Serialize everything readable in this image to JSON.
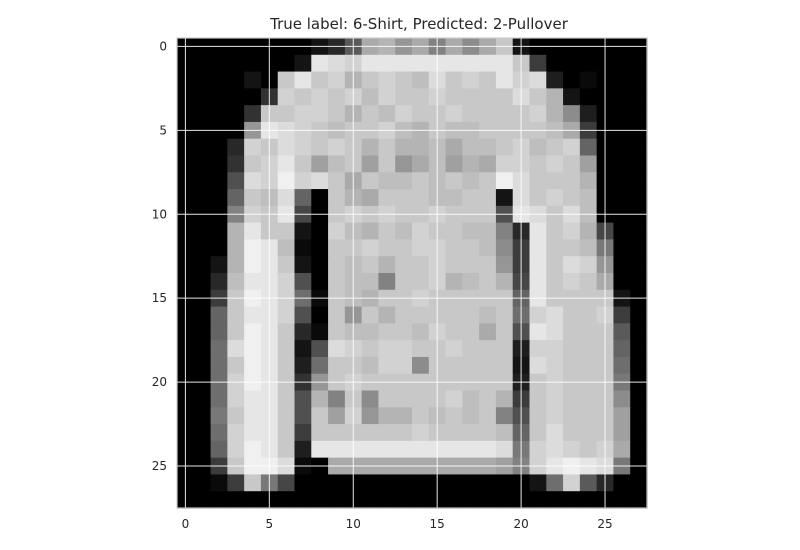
{
  "chart_data": {
    "type": "heatmap",
    "title": "True label: 6-Shirt, Predicted: 2-Pullover",
    "xlabel": "",
    "ylabel": "",
    "x_ticks": [
      "0",
      "5",
      "10",
      "15",
      "20",
      "25"
    ],
    "y_ticks": [
      "0",
      "5",
      "10",
      "15",
      "20",
      "25"
    ],
    "xlim": [
      -0.5,
      27.5
    ],
    "ylim": [
      27.5,
      -0.5
    ],
    "grid": true,
    "colormap": "gray",
    "rows": 28,
    "cols": 28,
    "values": [
      [
        0,
        0,
        0,
        0,
        0,
        0,
        0,
        0,
        20,
        40,
        90,
        170,
        180,
        150,
        170,
        130,
        170,
        140,
        170,
        200,
        20,
        0,
        0,
        0,
        0,
        0,
        0,
        0
      ],
      [
        0,
        0,
        0,
        0,
        0,
        0,
        0,
        20,
        230,
        220,
        210,
        230,
        230,
        230,
        230,
        230,
        230,
        230,
        230,
        230,
        200,
        60,
        0,
        0,
        0,
        0,
        0,
        0
      ],
      [
        0,
        0,
        0,
        0,
        20,
        0,
        200,
        230,
        200,
        210,
        180,
        200,
        210,
        200,
        190,
        220,
        200,
        210,
        200,
        230,
        210,
        220,
        30,
        0,
        10,
        0,
        0,
        0
      ],
      [
        0,
        0,
        0,
        0,
        0,
        50,
        210,
        200,
        210,
        200,
        210,
        190,
        210,
        200,
        200,
        210,
        200,
        200,
        200,
        200,
        220,
        200,
        180,
        20,
        0,
        0,
        0,
        0
      ],
      [
        0,
        0,
        0,
        0,
        50,
        200,
        200,
        210,
        210,
        200,
        180,
        200,
        190,
        210,
        200,
        200,
        210,
        200,
        200,
        200,
        200,
        210,
        180,
        140,
        30,
        0,
        0,
        0
      ],
      [
        0,
        0,
        0,
        0,
        150,
        230,
        220,
        210,
        200,
        190,
        200,
        200,
        210,
        190,
        180,
        200,
        190,
        190,
        200,
        200,
        200,
        200,
        190,
        170,
        60,
        0,
        0,
        0
      ],
      [
        0,
        0,
        0,
        40,
        210,
        200,
        220,
        210,
        200,
        210,
        200,
        180,
        200,
        180,
        180,
        190,
        170,
        190,
        190,
        200,
        210,
        190,
        200,
        210,
        100,
        0,
        0,
        0
      ],
      [
        0,
        0,
        0,
        50,
        200,
        210,
        230,
        200,
        160,
        190,
        200,
        160,
        200,
        150,
        170,
        190,
        160,
        180,
        170,
        210,
        210,
        200,
        210,
        200,
        160,
        0,
        0,
        0
      ],
      [
        0,
        0,
        0,
        80,
        220,
        210,
        240,
        210,
        220,
        200,
        170,
        200,
        190,
        190,
        200,
        190,
        200,
        190,
        200,
        240,
        220,
        200,
        200,
        200,
        180,
        0,
        0,
        0
      ],
      [
        0,
        0,
        0,
        100,
        200,
        190,
        220,
        100,
        0,
        200,
        180,
        170,
        200,
        200,
        200,
        190,
        190,
        200,
        200,
        20,
        220,
        200,
        210,
        200,
        190,
        0,
        0,
        0
      ],
      [
        0,
        0,
        0,
        130,
        210,
        200,
        230,
        70,
        0,
        200,
        210,
        200,
        210,
        200,
        200,
        210,
        200,
        200,
        200,
        80,
        230,
        220,
        200,
        220,
        190,
        0,
        0,
        0
      ],
      [
        0,
        0,
        0,
        180,
        230,
        200,
        200,
        20,
        0,
        210,
        190,
        180,
        200,
        190,
        210,
        200,
        200,
        190,
        190,
        130,
        40,
        230,
        200,
        210,
        180,
        70,
        0,
        0
      ],
      [
        0,
        0,
        0,
        180,
        240,
        230,
        190,
        10,
        0,
        200,
        200,
        210,
        200,
        200,
        210,
        210,
        200,
        200,
        190,
        140,
        60,
        230,
        200,
        200,
        190,
        120,
        0,
        0
      ],
      [
        0,
        0,
        20,
        180,
        240,
        230,
        200,
        20,
        0,
        200,
        190,
        200,
        180,
        200,
        200,
        210,
        200,
        200,
        200,
        150,
        60,
        230,
        200,
        220,
        210,
        150,
        0,
        0
      ],
      [
        0,
        0,
        40,
        190,
        230,
        230,
        210,
        80,
        0,
        200,
        190,
        190,
        130,
        200,
        200,
        210,
        180,
        190,
        200,
        180,
        70,
        230,
        200,
        210,
        200,
        170,
        0,
        0
      ],
      [
        0,
        0,
        60,
        200,
        240,
        230,
        210,
        110,
        10,
        200,
        190,
        180,
        200,
        200,
        210,
        200,
        200,
        200,
        200,
        200,
        100,
        230,
        200,
        200,
        200,
        200,
        20,
        0
      ],
      [
        0,
        0,
        100,
        200,
        230,
        230,
        210,
        80,
        0,
        200,
        150,
        200,
        180,
        200,
        200,
        200,
        200,
        200,
        190,
        200,
        110,
        210,
        220,
        200,
        200,
        210,
        60,
        0
      ],
      [
        0,
        0,
        100,
        200,
        240,
        230,
        200,
        40,
        10,
        200,
        190,
        190,
        200,
        200,
        190,
        210,
        200,
        200,
        170,
        200,
        80,
        230,
        220,
        200,
        200,
        200,
        90,
        0
      ],
      [
        0,
        0,
        110,
        220,
        240,
        230,
        200,
        20,
        80,
        220,
        210,
        200,
        210,
        210,
        200,
        200,
        210,
        200,
        200,
        200,
        30,
        210,
        210,
        200,
        200,
        200,
        100,
        0
      ],
      [
        0,
        0,
        110,
        200,
        240,
        230,
        200,
        30,
        110,
        200,
        200,
        190,
        210,
        210,
        140,
        200,
        200,
        200,
        200,
        200,
        20,
        220,
        210,
        200,
        200,
        200,
        110,
        0
      ],
      [
        0,
        0,
        110,
        210,
        240,
        230,
        200,
        50,
        150,
        200,
        210,
        200,
        200,
        200,
        200,
        200,
        200,
        200,
        200,
        200,
        30,
        200,
        210,
        200,
        200,
        200,
        120,
        0
      ],
      [
        0,
        0,
        110,
        210,
        230,
        230,
        200,
        80,
        180,
        130,
        200,
        140,
        200,
        200,
        200,
        200,
        210,
        190,
        200,
        180,
        60,
        200,
        210,
        200,
        200,
        200,
        140,
        0
      ],
      [
        0,
        0,
        120,
        200,
        230,
        230,
        200,
        80,
        200,
        160,
        210,
        150,
        180,
        180,
        200,
        190,
        200,
        190,
        200,
        130,
        80,
        200,
        210,
        200,
        200,
        200,
        160,
        0
      ],
      [
        0,
        0,
        110,
        210,
        230,
        230,
        200,
        60,
        200,
        200,
        200,
        200,
        200,
        200,
        210,
        200,
        200,
        200,
        200,
        190,
        100,
        200,
        220,
        200,
        200,
        200,
        160,
        0
      ],
      [
        0,
        0,
        100,
        210,
        240,
        230,
        200,
        30,
        230,
        230,
        230,
        230,
        230,
        230,
        230,
        230,
        230,
        230,
        230,
        220,
        120,
        210,
        220,
        210,
        200,
        210,
        170,
        0
      ],
      [
        0,
        0,
        60,
        200,
        240,
        240,
        220,
        10,
        0,
        170,
        170,
        170,
        170,
        170,
        170,
        170,
        170,
        170,
        170,
        160,
        130,
        210,
        230,
        240,
        230,
        220,
        120,
        0
      ],
      [
        0,
        0,
        10,
        60,
        200,
        120,
        70,
        0,
        0,
        0,
        0,
        0,
        0,
        0,
        0,
        0,
        0,
        0,
        0,
        0,
        0,
        20,
        110,
        210,
        90,
        40,
        0,
        0
      ],
      [
        0,
        0,
        0,
        0,
        0,
        0,
        0,
        0,
        0,
        0,
        0,
        0,
        0,
        0,
        0,
        0,
        0,
        0,
        0,
        0,
        0,
        0,
        0,
        0,
        0,
        0,
        0,
        0
      ]
    ]
  },
  "colors": {
    "background": "#ffffff",
    "text": "#262626",
    "grid": "#ffffff",
    "axes_edge": "#cccccc"
  }
}
